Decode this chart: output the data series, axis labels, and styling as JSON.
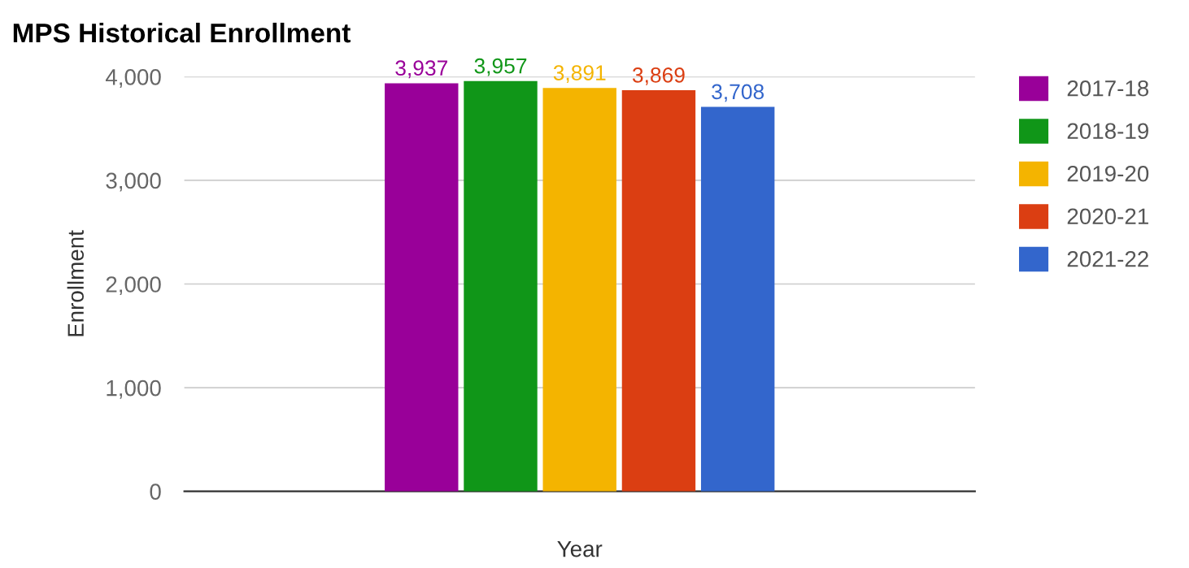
{
  "chart_data": {
    "type": "bar",
    "title": "MPS Historical Enrollment",
    "xlabel": "Year",
    "ylabel": "Enrollment",
    "categories": [
      null
    ],
    "series": [
      {
        "name": "2017-18",
        "color": "#990099",
        "values": [
          3937
        ],
        "value_labels": [
          "3,937"
        ]
      },
      {
        "name": "2018-19",
        "color": "#109618",
        "values": [
          3957
        ],
        "value_labels": [
          "3,957"
        ]
      },
      {
        "name": "2019-20",
        "color": "#f4b400",
        "values": [
          3891
        ],
        "value_labels": [
          "3,891"
        ]
      },
      {
        "name": "2020-21",
        "color": "#db3e12",
        "values": [
          3869
        ],
        "value_labels": [
          "3,869"
        ]
      },
      {
        "name": "2021-22",
        "color": "#3366cc",
        "values": [
          3708
        ],
        "value_labels": [
          "3,708"
        ]
      }
    ],
    "ylim": [
      0,
      4000
    ],
    "yticks": [
      {
        "value": 0,
        "label": "0"
      },
      {
        "value": 1000,
        "label": "1,000"
      },
      {
        "value": 2000,
        "label": "2,000"
      },
      {
        "value": 3000,
        "label": "3,000"
      },
      {
        "value": 4000,
        "label": "4,000"
      }
    ],
    "grid": "y",
    "legend": "right"
  }
}
